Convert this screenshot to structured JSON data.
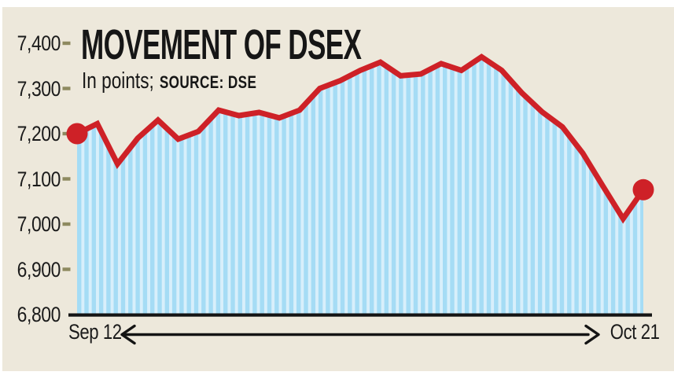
{
  "header": {
    "title": "MOVEMENT OF DSEX",
    "subtitle": "In points;",
    "source": "SOURCE: DSE"
  },
  "colors": {
    "page_white": "#FFFFFF",
    "panel_background": "#EDE8DB",
    "text": "#1A1A1A",
    "line_red": "#CE2127",
    "marker_red": "#CE2127",
    "stripe_dark_blue": "#A5DCF5",
    "stripe_light_blue": "#D8EFFB",
    "tick_dash_olive": "#8E8A60",
    "axis_black": "#141414"
  },
  "chart_data": {
    "type": "line",
    "title": "MOVEMENT OF DSEX",
    "units_label": "In points",
    "source": "DSE",
    "x_start_label": "Sep 12",
    "x_end_label": "Oct 21",
    "values": [
      7200,
      7222,
      7133,
      7190,
      7230,
      7188,
      7205,
      7252,
      7240,
      7247,
      7235,
      7252,
      7300,
      7317,
      7340,
      7358,
      7328,
      7332,
      7355,
      7340,
      7370,
      7340,
      7290,
      7248,
      7215,
      7157,
      7084,
      7012,
      7076
    ],
    "first_value": 7200,
    "last_value": 7076,
    "ylim": [
      6800,
      7400
    ],
    "yticks": [
      {
        "label": "7,400",
        "value": 7400,
        "dash": true
      },
      {
        "label": "7,300",
        "value": 7300,
        "dash": true
      },
      {
        "label": "7,200",
        "value": 7200,
        "dash": true
      },
      {
        "label": "7,100",
        "value": 7100,
        "dash": true
      },
      {
        "label": "7,000",
        "value": 7000,
        "dash": true
      },
      {
        "label": "6,900",
        "value": 6900,
        "dash": true
      },
      {
        "label": "6,800",
        "value": 6800,
        "dash": false
      }
    ],
    "grid": false,
    "legend": false,
    "area_fill": "striped-light-blue",
    "endpoint_markers": true
  }
}
